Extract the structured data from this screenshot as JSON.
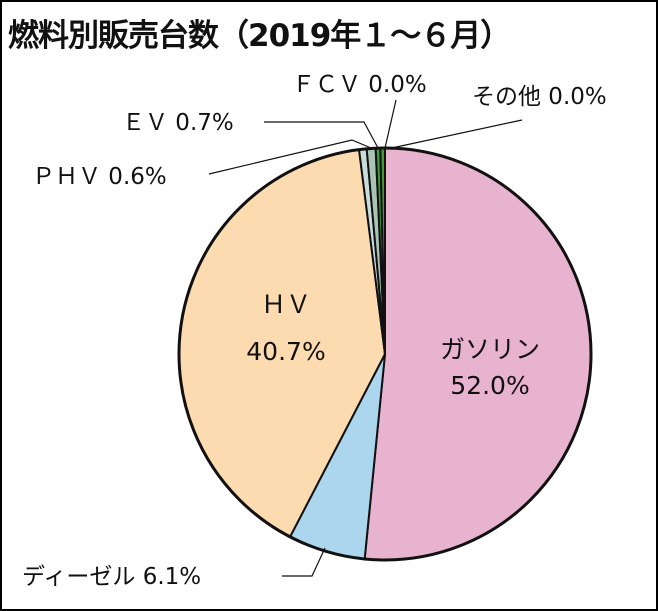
{
  "chart_data": {
    "type": "pie",
    "title": "燃料別販売台数（2019年１～６月）",
    "start": "top",
    "direction": "clockwise",
    "slices": [
      {
        "name": "ガソリン",
        "value": 52.0,
        "label": "52.0%",
        "color": "#e8b3cf"
      },
      {
        "name": "ディーゼル",
        "value": 6.1,
        "label": "6.1%",
        "color": "#acd5ee"
      },
      {
        "name": "ＨＶ",
        "value": 40.7,
        "label": "40.7%",
        "color": "#fddbb0"
      },
      {
        "name": "ＰＨＶ",
        "value": 0.6,
        "label": "0.6%",
        "color": "#c9dcdc"
      },
      {
        "name": "ＥＶ",
        "value": 0.7,
        "label": "0.7%",
        "color": "#a9c4b4"
      },
      {
        "name": "ＦＣＶ",
        "value": 0.0,
        "label": "0.0%",
        "color": "#3f9a3a"
      },
      {
        "name": "その他",
        "value": 0.0,
        "label": "0.0%",
        "color": "#3f9a3a"
      }
    ]
  }
}
